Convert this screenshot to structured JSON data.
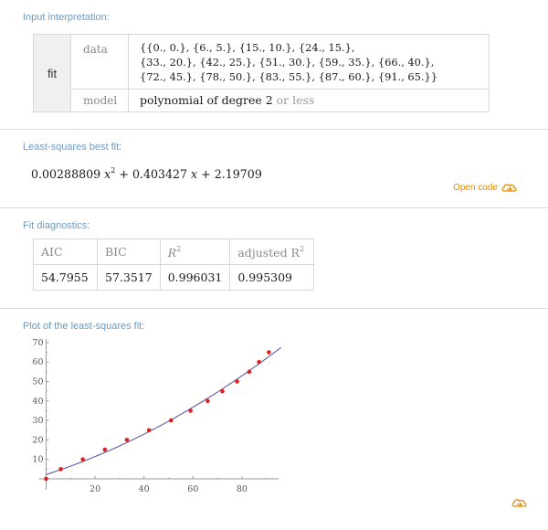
{
  "input": {
    "title": "Input interpretation:",
    "fit_label": "fit",
    "data_label": "data",
    "data_lines": [
      "{{0., 0.}, {6., 5.}, {15., 10.}, {24., 15.},",
      "{33., 20.}, {42., 25.}, {51., 30.}, {59., 35.}, {66., 40.},",
      "{72., 45.}, {78., 50.}, {83., 55.}, {87., 60.}, {91., 65.}}"
    ],
    "model_label": "model",
    "model_value": "polynomial of degree 2",
    "model_suffix": "or less"
  },
  "fit": {
    "title": "Least-squares best fit:",
    "coef_a": "0.00288809",
    "var": "x",
    "exp": "2",
    "op1": "+",
    "coef_b": "0.403427",
    "op2": "+",
    "coef_c": "2.19709",
    "open_code": "Open code"
  },
  "diagnostics": {
    "title": "Fit diagnostics:",
    "headers": {
      "aic": "AIC",
      "bic": "BIC",
      "r2": "R",
      "r2_sup": "2",
      "adj": "adjusted R",
      "adj_sup": "2"
    },
    "values": [
      "54.7955",
      "57.3517",
      "0.996031",
      "0.995309"
    ]
  },
  "plot": {
    "title": "Plot of the least-squares fit:"
  },
  "chart_data": {
    "type": "scatter",
    "title": "",
    "xlabel": "",
    "ylabel": "",
    "xlim": [
      0,
      95
    ],
    "ylim": [
      0,
      70
    ],
    "x_ticks": [
      20,
      40,
      60,
      80
    ],
    "y_ticks": [
      10,
      20,
      30,
      40,
      50,
      60,
      70
    ],
    "points": [
      [
        0,
        0
      ],
      [
        6,
        5
      ],
      [
        15,
        10
      ],
      [
        24,
        15
      ],
      [
        33,
        20
      ],
      [
        42,
        25
      ],
      [
        51,
        30
      ],
      [
        59,
        35
      ],
      [
        66,
        40
      ],
      [
        72,
        45
      ],
      [
        78,
        50
      ],
      [
        83,
        55
      ],
      [
        87,
        60
      ],
      [
        91,
        65
      ]
    ],
    "fit_curve": {
      "a": 0.00288809,
      "b": 0.403427,
      "c": 2.19709
    },
    "point_color": "#e0201f",
    "curve_color": "#5f5fa6",
    "grid": false
  },
  "colors": {
    "accent": "#e38a00",
    "pod_title": "#6d9bc0"
  }
}
